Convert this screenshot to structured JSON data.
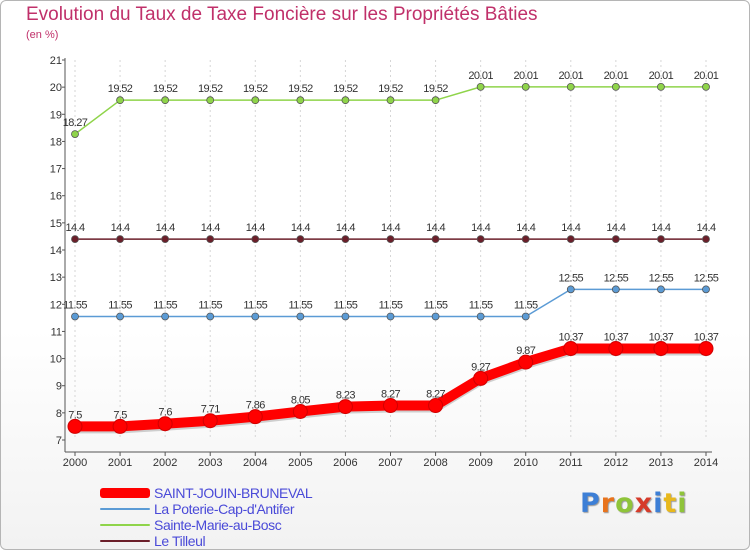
{
  "title": "Evolution du Taux de Taxe Foncière sur les Propriétés Bâties",
  "subtitle": "(en %)",
  "chart_data": {
    "type": "line",
    "title": "Evolution du Taux de Taxe Foncière sur les Propriétés Bâties",
    "ylabel": "(en %)",
    "xlabel": "",
    "x": [
      "2000",
      "2001",
      "2002",
      "2003",
      "2004",
      "2005",
      "2006",
      "2007",
      "2008",
      "2009",
      "2010",
      "2011",
      "2012",
      "2013",
      "2014"
    ],
    "ylim": [
      7,
      21
    ],
    "yticks": [
      7,
      8,
      9,
      10,
      11,
      12,
      13,
      14,
      15,
      16,
      17,
      18,
      19,
      20,
      21
    ],
    "legend_position": "bottom-left",
    "series": [
      {
        "name": "SAINT-JOUIN-BRUNEVAL",
        "color": "#ff0000",
        "values": [
          7.5,
          7.5,
          7.6,
          7.71,
          7.86,
          8.05,
          8.23,
          8.27,
          8.27,
          9.27,
          9.87,
          10.37,
          10.37,
          10.37,
          10.37
        ],
        "labels": [
          "7.5",
          "7.5",
          "7.6",
          "7.71",
          "7.86",
          "8.05",
          "8.23",
          "8.27",
          "8.27",
          "9.27",
          "9.87",
          "10.37",
          "10.37",
          "10.37",
          "10.37"
        ]
      },
      {
        "name": "La Poterie-Cap-d'Antifer",
        "color": "#5b9bd5",
        "values": [
          11.55,
          11.55,
          11.55,
          11.55,
          11.55,
          11.55,
          11.55,
          11.55,
          11.55,
          11.55,
          11.55,
          12.55,
          12.55,
          12.55,
          12.55
        ],
        "labels": [
          "11.55",
          "11.55",
          "11.55",
          "11.55",
          "11.55",
          "11.55",
          "11.55",
          "11.55",
          "11.55",
          "11.55",
          "11.55",
          "12.55",
          "12.55",
          "12.55",
          "12.55"
        ]
      },
      {
        "name": "Sainte-Marie-au-Bosc",
        "color": "#8fd44a",
        "values": [
          18.27,
          19.52,
          19.52,
          19.52,
          19.52,
          19.52,
          19.52,
          19.52,
          19.52,
          20.01,
          20.01,
          20.01,
          20.01,
          20.01,
          20.01
        ],
        "labels": [
          "18.27",
          "19.52",
          "19.52",
          "19.52",
          "19.52",
          "19.52",
          "19.52",
          "19.52",
          "19.52",
          "20.01",
          "20.01",
          "20.01",
          "20.01",
          "20.01",
          "20.01"
        ]
      },
      {
        "name": "Le Tilleul",
        "color": "#6b1f2a",
        "values": [
          14.4,
          14.4,
          14.4,
          14.4,
          14.4,
          14.4,
          14.4,
          14.4,
          14.4,
          14.4,
          14.4,
          14.4,
          14.4,
          14.4,
          14.4
        ],
        "labels": [
          "14.4",
          "14.4",
          "14.4",
          "14.4",
          "14.4",
          "14.4",
          "14.4",
          "14.4",
          "14.4",
          "14.4",
          "14.4",
          "14.4",
          "14.4",
          "14.4",
          "14.4"
        ]
      }
    ]
  },
  "logo": {
    "letters": [
      "P",
      "r",
      "o",
      "x",
      "i",
      "t",
      "i"
    ],
    "colors": [
      "#3d7fd6",
      "#e8731c",
      "#8fc43a",
      "#d63b2a",
      "#3d7fd6",
      "#e8b81c",
      "#8fc43a"
    ]
  }
}
